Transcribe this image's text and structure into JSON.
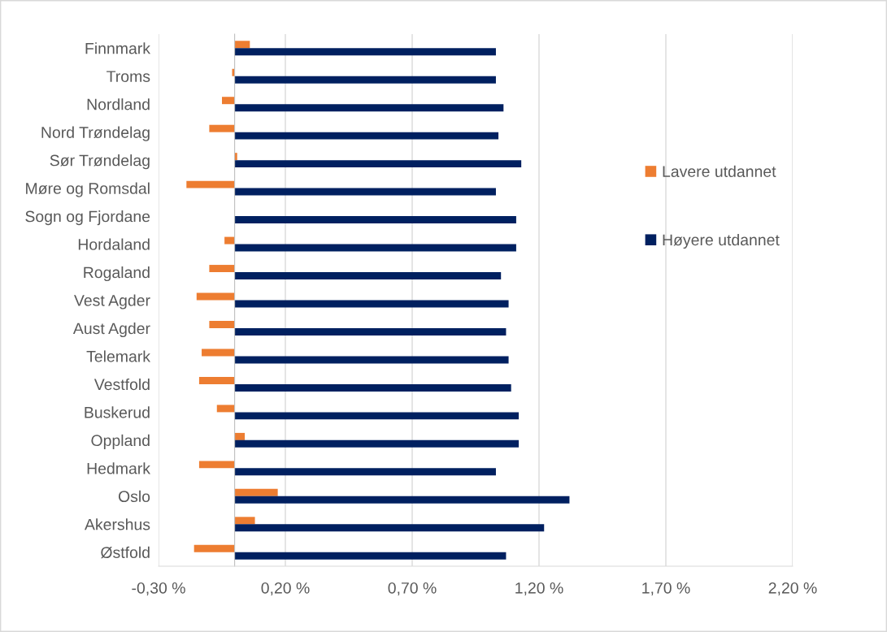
{
  "chart_data": {
    "type": "bar",
    "orientation": "horizontal",
    "categories": [
      "Finnmark",
      "Troms",
      "Nordland",
      "Nord Trøndelag",
      "Sør Trøndelag",
      "Møre og Romsdal",
      "Sogn og Fjordane",
      "Hordaland",
      "Rogaland",
      "Vest Agder",
      "Aust Agder",
      "Telemark",
      "Vestfold",
      "Buskerud",
      "Oppland",
      "Hedmark",
      "Oslo",
      "Akershus",
      "Østfold"
    ],
    "series": [
      {
        "name": "Lavere utdannet",
        "color": "#ed7d31",
        "values": [
          0.06,
          -0.01,
          -0.05,
          -0.1,
          0.01,
          -0.19,
          null,
          -0.04,
          -0.1,
          -0.15,
          -0.1,
          -0.13,
          -0.14,
          -0.07,
          0.04,
          -0.14,
          0.17,
          0.08,
          -0.16
        ]
      },
      {
        "name": "Høyere utdannet",
        "color": "#002060",
        "values": [
          1.03,
          1.03,
          1.06,
          1.04,
          1.13,
          1.03,
          1.11,
          1.11,
          1.05,
          1.08,
          1.07,
          1.08,
          1.09,
          1.12,
          1.12,
          1.03,
          1.32,
          1.22,
          1.07
        ]
      }
    ],
    "xlim": [
      -0.3,
      2.2
    ],
    "xticks": [
      {
        "value": -0.3,
        "label": "-0,30 %"
      },
      {
        "value": 0.2,
        "label": "0,20 %"
      },
      {
        "value": 0.7,
        "label": "0,70 %"
      },
      {
        "value": 1.2,
        "label": "1,20 %"
      },
      {
        "value": 1.7,
        "label": "1,70 %"
      },
      {
        "value": 2.2,
        "label": "2,20 %"
      }
    ],
    "grid": "x",
    "legend": "right"
  }
}
